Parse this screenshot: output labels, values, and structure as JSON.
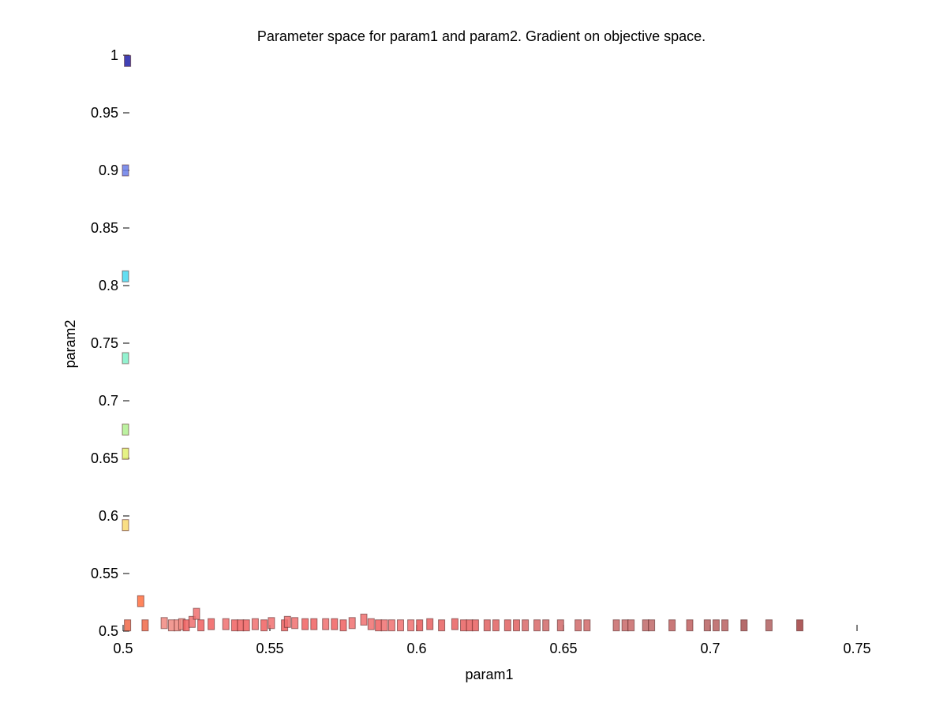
{
  "chart_data": {
    "type": "scatter",
    "title": "Parameter space for param1 and param2. Gradient on objective space.",
    "xlabel": "param1",
    "ylabel": "param2",
    "xlim": [
      0.5,
      0.75
    ],
    "ylim": [
      0.5,
      1.0
    ],
    "x_ticks": [
      "0.5",
      "0.55",
      "0.6",
      "0.65",
      "0.7",
      "0.75"
    ],
    "y_ticks": [
      "0.5",
      "0.55",
      "0.6",
      "0.65",
      "0.7",
      "0.75",
      "0.8",
      "0.85",
      "0.9",
      "0.95",
      "1"
    ],
    "grid": false,
    "marker": "rectangle",
    "points": [
      {
        "x": 0.5015,
        "y": 0.995,
        "color": "#2020a8"
      },
      {
        "x": 0.5008,
        "y": 0.9,
        "color": "#6a7ee8"
      },
      {
        "x": 0.5008,
        "y": 0.808,
        "color": "#48d8f0"
      },
      {
        "x": 0.5008,
        "y": 0.737,
        "color": "#80f0c8"
      },
      {
        "x": 0.5008,
        "y": 0.675,
        "color": "#b0f090"
      },
      {
        "x": 0.5008,
        "y": 0.654,
        "color": "#e0f070"
      },
      {
        "x": 0.5008,
        "y": 0.592,
        "color": "#f8d870"
      },
      {
        "x": 0.506,
        "y": 0.526,
        "color": "#ff7040"
      },
      {
        "x": 0.5015,
        "y": 0.505,
        "color": "#f06848"
      },
      {
        "x": 0.5075,
        "y": 0.505,
        "color": "#f06848"
      },
      {
        "x": 0.514,
        "y": 0.507,
        "color": "#f08880"
      },
      {
        "x": 0.5165,
        "y": 0.505,
        "color": "#f08880"
      },
      {
        "x": 0.5185,
        "y": 0.505,
        "color": "#f08880"
      },
      {
        "x": 0.52,
        "y": 0.506,
        "color": "#f08880"
      },
      {
        "x": 0.5215,
        "y": 0.505,
        "color": "#f06060"
      },
      {
        "x": 0.5235,
        "y": 0.508,
        "color": "#f07070"
      },
      {
        "x": 0.525,
        "y": 0.515,
        "color": "#f07070"
      },
      {
        "x": 0.5265,
        "y": 0.505,
        "color": "#f06060"
      },
      {
        "x": 0.53,
        "y": 0.506,
        "color": "#f06060"
      },
      {
        "x": 0.535,
        "y": 0.506,
        "color": "#f07070"
      },
      {
        "x": 0.538,
        "y": 0.505,
        "color": "#f06060"
      },
      {
        "x": 0.54,
        "y": 0.505,
        "color": "#f06060"
      },
      {
        "x": 0.542,
        "y": 0.505,
        "color": "#f06060"
      },
      {
        "x": 0.545,
        "y": 0.506,
        "color": "#f07070"
      },
      {
        "x": 0.548,
        "y": 0.505,
        "color": "#f06060"
      },
      {
        "x": 0.5505,
        "y": 0.507,
        "color": "#f07070"
      },
      {
        "x": 0.555,
        "y": 0.505,
        "color": "#f06060"
      },
      {
        "x": 0.556,
        "y": 0.508,
        "color": "#f07070"
      },
      {
        "x": 0.5585,
        "y": 0.507,
        "color": "#f07070"
      },
      {
        "x": 0.562,
        "y": 0.506,
        "color": "#f06060"
      },
      {
        "x": 0.565,
        "y": 0.506,
        "color": "#f06060"
      },
      {
        "x": 0.569,
        "y": 0.506,
        "color": "#f07070"
      },
      {
        "x": 0.572,
        "y": 0.506,
        "color": "#f06060"
      },
      {
        "x": 0.575,
        "y": 0.505,
        "color": "#f06060"
      },
      {
        "x": 0.578,
        "y": 0.507,
        "color": "#f07070"
      },
      {
        "x": 0.582,
        "y": 0.51,
        "color": "#f07070"
      },
      {
        "x": 0.5845,
        "y": 0.506,
        "color": "#f07070"
      },
      {
        "x": 0.587,
        "y": 0.505,
        "color": "#f06060"
      },
      {
        "x": 0.589,
        "y": 0.505,
        "color": "#f07070"
      },
      {
        "x": 0.5915,
        "y": 0.505,
        "color": "#f07070"
      },
      {
        "x": 0.5945,
        "y": 0.505,
        "color": "#f07070"
      },
      {
        "x": 0.598,
        "y": 0.505,
        "color": "#f07070"
      },
      {
        "x": 0.601,
        "y": 0.505,
        "color": "#e85858"
      },
      {
        "x": 0.6045,
        "y": 0.506,
        "color": "#e86060"
      },
      {
        "x": 0.6085,
        "y": 0.505,
        "color": "#e86060"
      },
      {
        "x": 0.613,
        "y": 0.506,
        "color": "#e86060"
      },
      {
        "x": 0.616,
        "y": 0.505,
        "color": "#e86060"
      },
      {
        "x": 0.618,
        "y": 0.505,
        "color": "#e86060"
      },
      {
        "x": 0.62,
        "y": 0.505,
        "color": "#e86060"
      },
      {
        "x": 0.624,
        "y": 0.505,
        "color": "#e06060"
      },
      {
        "x": 0.627,
        "y": 0.505,
        "color": "#e06060"
      },
      {
        "x": 0.631,
        "y": 0.505,
        "color": "#e06060"
      },
      {
        "x": 0.634,
        "y": 0.505,
        "color": "#e06060"
      },
      {
        "x": 0.637,
        "y": 0.505,
        "color": "#d86868"
      },
      {
        "x": 0.641,
        "y": 0.505,
        "color": "#d86868"
      },
      {
        "x": 0.644,
        "y": 0.505,
        "color": "#d06868"
      },
      {
        "x": 0.649,
        "y": 0.505,
        "color": "#d06868"
      },
      {
        "x": 0.655,
        "y": 0.505,
        "color": "#d06868"
      },
      {
        "x": 0.658,
        "y": 0.505,
        "color": "#d06868"
      },
      {
        "x": 0.668,
        "y": 0.505,
        "color": "#c86868"
      },
      {
        "x": 0.671,
        "y": 0.505,
        "color": "#c86868"
      },
      {
        "x": 0.673,
        "y": 0.505,
        "color": "#c86868"
      },
      {
        "x": 0.678,
        "y": 0.505,
        "color": "#c06868"
      },
      {
        "x": 0.68,
        "y": 0.505,
        "color": "#c06868"
      },
      {
        "x": 0.687,
        "y": 0.505,
        "color": "#c06060"
      },
      {
        "x": 0.693,
        "y": 0.505,
        "color": "#c06060"
      },
      {
        "x": 0.699,
        "y": 0.505,
        "color": "#b86060"
      },
      {
        "x": 0.702,
        "y": 0.505,
        "color": "#b86060"
      },
      {
        "x": 0.705,
        "y": 0.505,
        "color": "#b86060"
      },
      {
        "x": 0.7115,
        "y": 0.505,
        "color": "#a85050"
      },
      {
        "x": 0.72,
        "y": 0.505,
        "color": "#b06060"
      },
      {
        "x": 0.7305,
        "y": 0.505,
        "color": "#a04040"
      }
    ]
  }
}
